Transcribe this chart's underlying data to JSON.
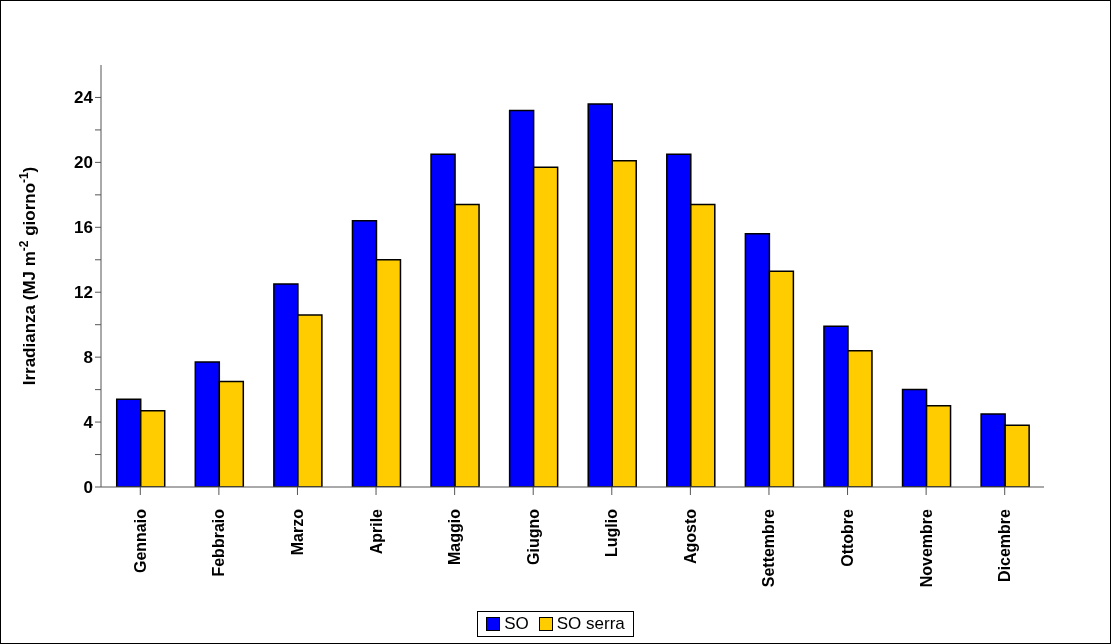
{
  "chart_data": {
    "type": "bar",
    "ylabel": "Irradianza (MJ m$^{-2}$ giorno$^{-1}$)",
    "categories": [
      "Gennaio",
      "Febbraio",
      "Marzo",
      "Aprile",
      "Maggio",
      "Giugno",
      "Luglio",
      "Agosto",
      "Settembre",
      "Ottobre",
      "Novembre",
      "Dicembre"
    ],
    "series": [
      {
        "name": "SO",
        "color": "#0000ff",
        "values": [
          5.4,
          7.7,
          12.5,
          16.4,
          20.5,
          23.2,
          23.6,
          20.5,
          15.6,
          9.9,
          6.0,
          4.5
        ]
      },
      {
        "name": "SO serra",
        "color": "#ffcc00",
        "values": [
          4.7,
          6.5,
          10.6,
          14.0,
          17.4,
          19.7,
          20.1,
          17.4,
          13.3,
          8.4,
          5.0,
          3.8
        ]
      }
    ],
    "ylim": [
      0,
      26
    ],
    "yticks": [
      0,
      {
        "value": 2,
        "label": null
      },
      4,
      {
        "value": 6,
        "label": null
      },
      8,
      {
        "value": 10,
        "label": null
      },
      12,
      {
        "value": 14,
        "label": null
      },
      16,
      {
        "value": 18,
        "label": null
      },
      20,
      {
        "value": 22,
        "label": null
      },
      24
    ],
    "grid": false,
    "legend": "bottom"
  }
}
